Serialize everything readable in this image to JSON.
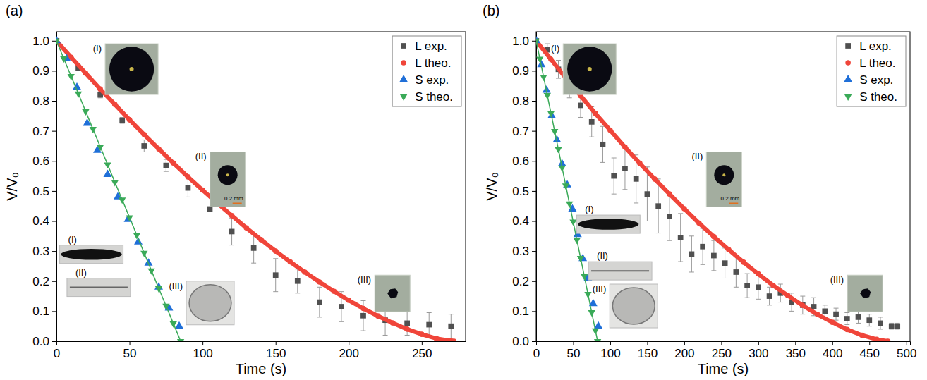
{
  "chart_data": [
    {
      "type": "scatter",
      "title": "(a)",
      "xlabel": "Time (s)",
      "ylabel": "V/V₀",
      "xlim": [
        0,
        280
      ],
      "ylim": [
        0,
        1.03
      ],
      "xticks": [
        0,
        50,
        100,
        150,
        200,
        250
      ],
      "yticks": [
        {
          "value": 0,
          "label": "0.0"
        },
        0.1,
        0.2,
        0.3,
        0.4,
        0.5,
        0.6,
        0.7,
        0.8,
        0.9,
        {
          "value": 1,
          "label": "1.0"
        }
      ],
      "grid": false,
      "legend": "upper right",
      "series": [
        {
          "name": "L exp.",
          "color": "#505050",
          "marker": "square",
          "line_style": "none",
          "x": [
            0,
            15,
            30,
            45,
            60,
            75,
            90,
            105,
            120,
            135,
            150,
            165,
            180,
            195,
            210,
            225,
            240,
            255,
            270
          ],
          "values": [
            1.0,
            0.91,
            0.82,
            0.735,
            0.65,
            0.585,
            0.51,
            0.44,
            0.365,
            0.31,
            0.22,
            0.2,
            0.13,
            0.115,
            0.085,
            0.07,
            0.06,
            0.055,
            0.05
          ],
          "errors": [
            0,
            0.01,
            0.01,
            0.01,
            0.02,
            0.02,
            0.03,
            0.04,
            0.045,
            0.05,
            0.055,
            0.04,
            0.05,
            0.05,
            0.05,
            0.05,
            0.04,
            0.04,
            0.04
          ]
        },
        {
          "name": "L theo.",
          "color": "#f0453a",
          "marker": "circle",
          "line_style": "solid",
          "x": [
            0,
            10,
            20,
            30,
            40,
            50,
            60,
            70,
            80,
            90,
            100,
            110,
            120,
            130,
            140,
            150,
            160,
            170,
            180,
            190,
            200,
            210,
            220,
            230,
            240,
            250,
            260,
            270,
            272
          ],
          "values": [
            1,
            0.945,
            0.892,
            0.839,
            0.788,
            0.737,
            0.688,
            0.64,
            0.593,
            0.547,
            0.503,
            0.46,
            0.418,
            0.377,
            0.338,
            0.3,
            0.264,
            0.23,
            0.197,
            0.166,
            0.136,
            0.109,
            0.084,
            0.061,
            0.04,
            0.023,
            0.009,
            0.001,
            0
          ]
        },
        {
          "name": "S exp.",
          "color": "#1f6fd8",
          "marker": "triangle",
          "line_style": "none",
          "x": [
            0,
            7,
            14,
            21,
            28,
            35,
            42,
            49,
            56,
            63,
            70,
            77,
            84
          ],
          "values": [
            1.0,
            0.94,
            0.845,
            0.725,
            0.635,
            0.555,
            0.48,
            0.405,
            0.33,
            0.26,
            0.18,
            0.11,
            0.05
          ]
        },
        {
          "name": "S theo.",
          "color": "#3aaa58",
          "marker": "triangle-down",
          "line_style": "solid",
          "x": [
            0,
            5,
            10,
            15,
            20,
            25,
            30,
            35,
            40,
            45,
            50,
            55,
            60,
            65,
            70,
            75,
            80,
            85
          ],
          "values": [
            1,
            0.941,
            0.882,
            0.824,
            0.765,
            0.706,
            0.647,
            0.588,
            0.529,
            0.471,
            0.412,
            0.353,
            0.294,
            0.235,
            0.176,
            0.118,
            0.059,
            0
          ]
        }
      ],
      "insets": [
        {
          "label": "(I)",
          "x": 25,
          "y": 0.99
        },
        {
          "label": "(II)",
          "x": 95,
          "y": 0.63,
          "scale": "0.2 mm"
        },
        {
          "label": "(III)",
          "x": 206,
          "y": 0.22
        },
        {
          "label": "(I)",
          "x": 8,
          "y": 0.355
        },
        {
          "label": "(II)",
          "x": 13,
          "y": 0.245
        },
        {
          "label": "(III)",
          "x": 77,
          "y": 0.2
        }
      ]
    },
    {
      "type": "scatter",
      "title": "(b)",
      "xlabel": "Time (s)",
      "ylabel": "V/V₀",
      "xlim": [
        0,
        505
      ],
      "ylim": [
        0,
        1.03
      ],
      "xticks": [
        0,
        50,
        100,
        150,
        200,
        250,
        300,
        350,
        400,
        450,
        500
      ],
      "yticks": [
        {
          "value": 0,
          "label": "0.0"
        },
        0.1,
        0.2,
        0.3,
        0.4,
        0.5,
        0.6,
        0.7,
        0.8,
        0.9,
        {
          "value": 1,
          "label": "1.0"
        }
      ],
      "grid": false,
      "legend": "upper right",
      "series": [
        {
          "name": "L exp.",
          "color": "#505050",
          "marker": "square",
          "line_style": "none",
          "x": [
            0,
            15,
            30,
            45,
            60,
            75,
            90,
            105,
            120,
            135,
            150,
            165,
            180,
            195,
            210,
            225,
            240,
            255,
            270,
            285,
            300,
            315,
            330,
            345,
            360,
            375,
            390,
            405,
            420,
            435,
            450,
            465,
            480,
            488
          ],
          "values": [
            1.0,
            0.97,
            0.905,
            0.84,
            0.785,
            0.73,
            0.655,
            0.55,
            0.575,
            0.54,
            0.49,
            0.45,
            0.415,
            0.345,
            0.29,
            0.315,
            0.285,
            0.26,
            0.23,
            0.185,
            0.18,
            0.15,
            0.16,
            0.13,
            0.12,
            0.115,
            0.1,
            0.09,
            0.075,
            0.08,
            0.07,
            0.06,
            0.05,
            0.05
          ],
          "errors": [
            0,
            0.02,
            0.03,
            0.03,
            0.04,
            0.05,
            0.06,
            0.06,
            0.07,
            0.08,
            0.09,
            0.09,
            0.08,
            0.08,
            0.06,
            0.06,
            0.05,
            0.05,
            0.05,
            0.04,
            0.04,
            0.03,
            0.03,
            0.03,
            0.03,
            0.03,
            0.02,
            0.02,
            0.02,
            0.02,
            0.02,
            0.02,
            0.01,
            0.01
          ]
        },
        {
          "name": "L theo.",
          "color": "#f0453a",
          "marker": "circle",
          "line_style": "solid",
          "x": [
            0,
            20,
            40,
            60,
            80,
            100,
            120,
            140,
            160,
            180,
            200,
            220,
            240,
            260,
            280,
            300,
            320,
            340,
            360,
            380,
            400,
            420,
            440,
            460,
            475
          ],
          "values": [
            1,
            0.938,
            0.876,
            0.817,
            0.758,
            0.702,
            0.646,
            0.592,
            0.54,
            0.49,
            0.441,
            0.393,
            0.348,
            0.305,
            0.263,
            0.224,
            0.186,
            0.152,
            0.119,
            0.089,
            0.063,
            0.039,
            0.02,
            0.006,
            0
          ]
        },
        {
          "name": "S exp.",
          "color": "#1f6fd8",
          "marker": "triangle",
          "line_style": "none",
          "x": [
            0,
            7,
            14,
            21,
            28,
            35,
            42,
            49,
            56,
            63,
            70,
            77,
            84
          ],
          "values": [
            1.0,
            0.92,
            0.835,
            0.75,
            0.67,
            0.59,
            0.52,
            0.44,
            0.355,
            0.275,
            0.21,
            0.125,
            0.05
          ]
        },
        {
          "name": "S theo.",
          "color": "#3aaa58",
          "marker": "triangle-down",
          "line_style": "solid",
          "x": [
            0,
            5,
            10,
            15,
            20,
            25,
            30,
            35,
            40,
            45,
            50,
            55,
            60,
            65,
            70,
            75,
            80,
            83
          ],
          "values": [
            1,
            0.94,
            0.88,
            0.819,
            0.759,
            0.699,
            0.639,
            0.578,
            0.518,
            0.458,
            0.398,
            0.337,
            0.277,
            0.217,
            0.157,
            0.096,
            0.036,
            0
          ]
        }
      ],
      "insets": [
        {
          "label": "(I)",
          "x": 20,
          "y": 0.99
        },
        {
          "label": "(II)",
          "x": 210,
          "y": 0.63,
          "scale": "0.2 mm"
        },
        {
          "label": "(III)",
          "x": 397,
          "y": 0.22
        },
        {
          "label": "(I)",
          "x": 66,
          "y": 0.455
        },
        {
          "label": "(II)",
          "x": 82,
          "y": 0.3
        },
        {
          "label": "(III)",
          "x": 76,
          "y": 0.19
        }
      ]
    }
  ]
}
